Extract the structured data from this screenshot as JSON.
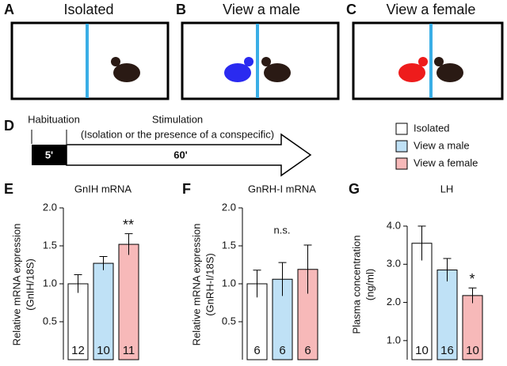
{
  "diagram": {
    "panels": [
      {
        "letter": "A",
        "title": "Isolated"
      },
      {
        "letter": "B",
        "title": "View a male"
      },
      {
        "letter": "C",
        "title": "View a female"
      }
    ],
    "timeline": {
      "letter": "D",
      "habituation": "Habituation",
      "stimulation": "Stimulation",
      "note": "(Isolation or the presence of a conspecific)",
      "habituation_time": "5'",
      "stimulation_time": "60'"
    }
  },
  "legend": [
    {
      "name": "Isolated",
      "color": "#ffffff"
    },
    {
      "name": "View a male",
      "color": "#bfe1f6"
    },
    {
      "name": "View a female",
      "color": "#f7b9b9"
    }
  ],
  "chart_data": [
    {
      "type": "bar",
      "letter": "E",
      "title": "GnIH mRNA",
      "y_label": [
        "Relative mRNA expression",
        "(GnIH/18S)"
      ],
      "values": [
        1.0,
        1.27,
        1.52
      ],
      "errors": [
        0.12,
        0.09,
        0.14
      ],
      "n": [
        12,
        10,
        11
      ],
      "annotation": "**",
      "ylim": [
        0,
        2.0
      ],
      "yticks": [
        {
          "value": 0.5,
          "label": "0.5"
        },
        {
          "value": 1.0,
          "label": "1.0"
        },
        {
          "value": 1.5,
          "label": "1.5"
        },
        {
          "value": 2.0,
          "label": "2.0"
        }
      ]
    },
    {
      "type": "bar",
      "letter": "F",
      "title": "GnRH-I mRNA",
      "y_label": [
        "Relative mRNA expression",
        "(GnRH-I/18S)"
      ],
      "values": [
        1.0,
        1.06,
        1.19
      ],
      "errors": [
        0.18,
        0.22,
        0.32
      ],
      "n": [
        6,
        6,
        6
      ],
      "annotation": "n.s.",
      "ylim": [
        0,
        2.0
      ],
      "yticks": [
        {
          "value": 0.5,
          "label": "0.5"
        },
        {
          "value": 1.0,
          "label": "1.0"
        },
        {
          "value": 1.5,
          "label": "1.5"
        },
        {
          "value": 2.0,
          "label": "2.0"
        }
      ]
    },
    {
      "type": "bar",
      "letter": "G",
      "title": "LH",
      "y_label": [
        "Plasma concentration",
        "(ng/ml)"
      ],
      "values": [
        3.55,
        2.85,
        2.18
      ],
      "errors": [
        0.45,
        0.3,
        0.2
      ],
      "n": [
        10,
        16,
        10
      ],
      "annotation": "*",
      "ylim": [
        0.5,
        4.0
      ],
      "yticks": [
        {
          "value": 1.0,
          "label": "1.0"
        },
        {
          "value": 2.0,
          "label": "2.0"
        },
        {
          "value": 3.0,
          "label": "3.0"
        },
        {
          "value": 4.0,
          "label": "4.0"
        }
      ]
    }
  ]
}
